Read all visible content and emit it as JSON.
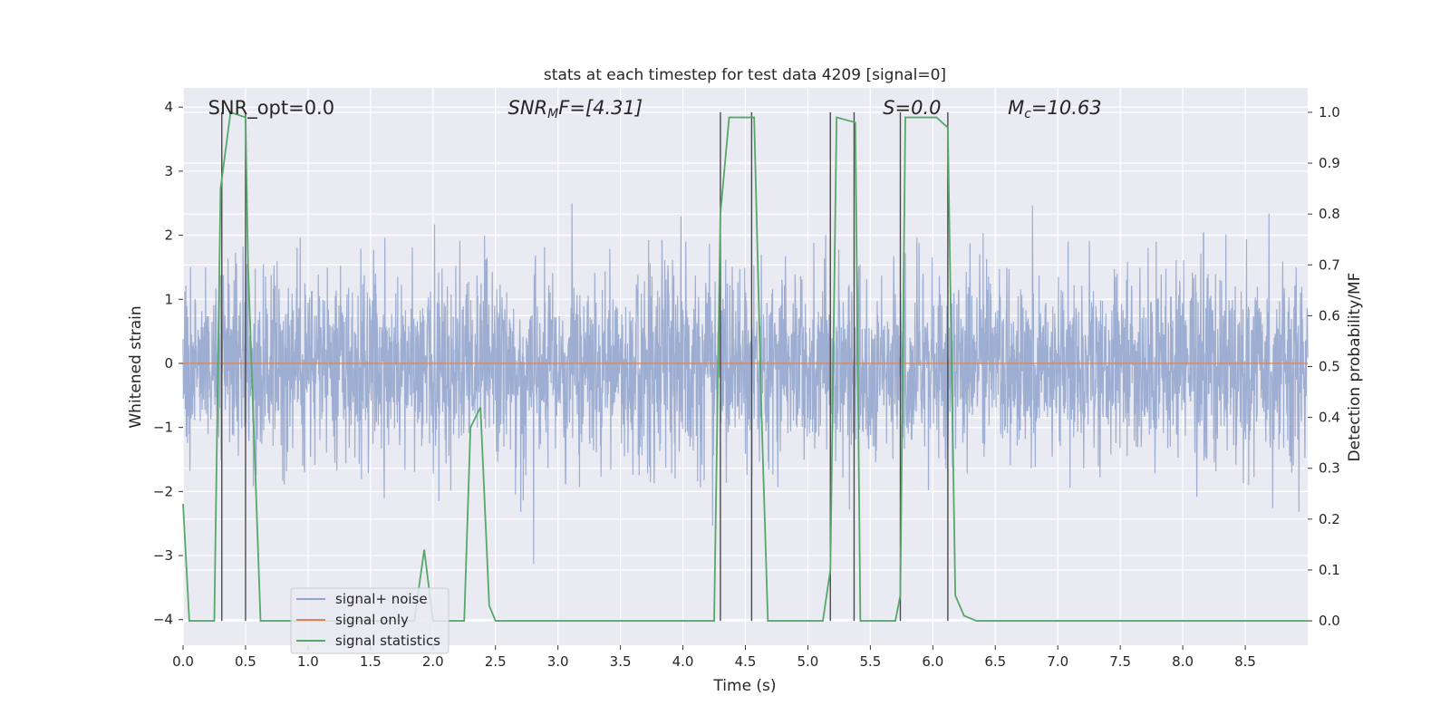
{
  "chart_data": {
    "type": "line",
    "title": "stats at each timestep for test data 4209 [signal=0]",
    "xlabel": "Time (s)",
    "ylabel": "Whitened strain",
    "y2label": "Detection probability/MF",
    "xlim": [
      0.0,
      9.0
    ],
    "ylim": [
      -4.4,
      4.3
    ],
    "y2lim": [
      -0.048,
      1.048
    ],
    "xticks": [
      0.0,
      0.5,
      1.0,
      1.5,
      2.0,
      2.5,
      3.0,
      3.5,
      4.0,
      4.5,
      5.0,
      5.5,
      6.0,
      6.5,
      7.0,
      7.5,
      8.0,
      8.5
    ],
    "xtick_labels": [
      "0.0",
      "0.5",
      "1.0",
      "1.5",
      "2.0",
      "2.5",
      "3.0",
      "3.5",
      "4.0",
      "4.5",
      "5.0",
      "5.5",
      "6.0",
      "6.5",
      "7.0",
      "7.5",
      "8.0",
      "8.5"
    ],
    "yticks": [
      -4,
      -3,
      -2,
      -1,
      0,
      1,
      2,
      3,
      4
    ],
    "ytick_labels": [
      "−4",
      "−3",
      "−2",
      "−1",
      "0",
      "1",
      "2",
      "3",
      "4"
    ],
    "y2ticks": [
      0.0,
      0.1,
      0.2,
      0.3,
      0.4,
      0.5,
      0.6,
      0.7,
      0.8,
      0.9,
      1.0
    ],
    "y2tick_labels": [
      "0.0",
      "0.1",
      "0.2",
      "0.3",
      "0.4",
      "0.5",
      "0.6",
      "0.7",
      "0.8",
      "0.9",
      "1.0"
    ],
    "grid": true,
    "legend_position": "lower-left",
    "annotations": [
      {
        "x": 0.2,
        "y": 4.0,
        "text": "SNR_opt=0.0",
        "italic": false
      },
      {
        "x": 2.6,
        "y": 4.0,
        "text": "SNR_MF=[4.31]",
        "italic": true,
        "rich": [
          [
            "SNR",
            "base"
          ],
          [
            "M",
            "sub"
          ],
          [
            "F=[4.31]",
            "base"
          ]
        ]
      },
      {
        "x": 5.6,
        "y": 4.0,
        "text": "S=0.0",
        "italic": true,
        "rich": [
          [
            "S",
            "base"
          ],
          [
            "=0.0",
            "base"
          ]
        ]
      },
      {
        "x": 6.6,
        "y": 4.0,
        "text": "M_c=10.63",
        "italic": true,
        "rich": [
          [
            "M",
            "base"
          ],
          [
            "c",
            "sub"
          ],
          [
            "=10.63",
            "base"
          ]
        ]
      }
    ],
    "noise": {
      "sample_rate": 400,
      "sigma": 0.75,
      "seed": 4209
    },
    "series": [
      {
        "name": "signal+ noise",
        "axis": "left",
        "color": "#8fa3cc",
        "kind": "noise"
      },
      {
        "name": "signal only",
        "axis": "left",
        "color": "#dd8452",
        "kind": "constant",
        "value": 0.0
      },
      {
        "name": "signal statistics",
        "axis": "right",
        "color": "#55a868",
        "kind": "line",
        "x": [
          0.0,
          0.05,
          0.25,
          0.3,
          0.38,
          0.5,
          0.52,
          0.62,
          1.85,
          1.93,
          2.0,
          2.25,
          2.3,
          2.38,
          2.45,
          2.5,
          4.25,
          4.3,
          4.37,
          4.57,
          4.63,
          4.68,
          5.12,
          5.18,
          5.23,
          5.38,
          5.42,
          5.7,
          5.74,
          5.78,
          6.03,
          6.12,
          6.18,
          6.25,
          6.35,
          9.0
        ],
        "y": [
          0.23,
          0.0,
          0.0,
          0.85,
          1.0,
          0.99,
          0.7,
          0.0,
          0.0,
          0.14,
          0.0,
          0.0,
          0.38,
          0.42,
          0.03,
          0.0,
          0.0,
          0.8,
          0.99,
          0.99,
          0.4,
          0.0,
          0.0,
          0.1,
          0.99,
          0.98,
          0.0,
          0.0,
          0.05,
          0.99,
          0.99,
          0.97,
          0.05,
          0.01,
          0.0,
          0.0
        ]
      }
    ],
    "vlines": [
      0.31,
      0.5,
      4.3,
      4.55,
      5.18,
      5.37,
      5.74,
      6.12
    ],
    "vline_color": "#4a4a4a"
  }
}
